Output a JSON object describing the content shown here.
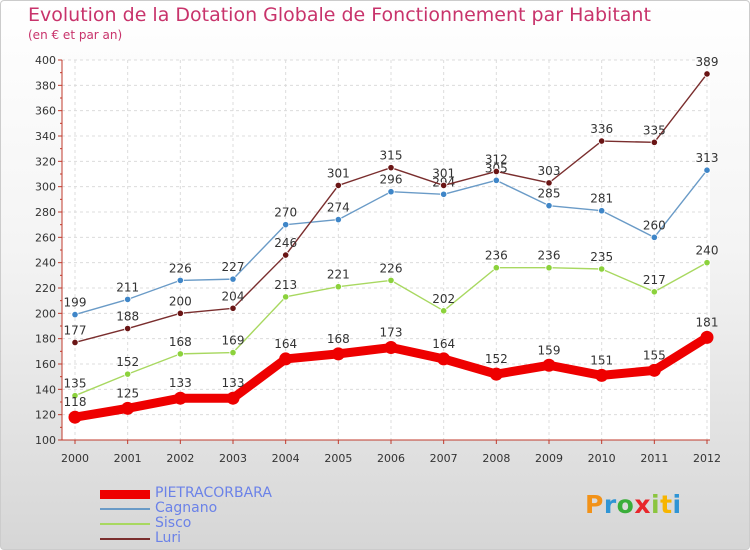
{
  "header": {
    "title": "Evolution de la Dotation Globale de Fonctionnement par Habitant",
    "subtitle": "(en € et par an)"
  },
  "logo": {
    "text": "Proxiti",
    "letter_colors": [
      "#f29218",
      "#2f95d5",
      "#3aae3a",
      "#e8272c",
      "#8bc53f",
      "#f7b500",
      "#2f95d5"
    ]
  },
  "chart_data": {
    "type": "line",
    "x": [
      "2000",
      "2001",
      "2002",
      "2003",
      "2004",
      "2005",
      "2006",
      "2007",
      "2008",
      "2009",
      "2010",
      "2011",
      "2012"
    ],
    "ylim": [
      100,
      400
    ],
    "yticks": [
      100,
      120,
      140,
      160,
      180,
      200,
      220,
      240,
      260,
      280,
      300,
      320,
      340,
      360,
      380,
      400
    ],
    "grid": true,
    "legend_position": "bottom-left",
    "series": [
      {
        "name": "PIETRACORBARA",
        "color": "#ee0000",
        "marker": "#ee0000",
        "emphasis": true,
        "values": [
          118,
          125,
          133,
          133,
          164,
          168,
          173,
          164,
          152,
          159,
          151,
          155,
          181
        ]
      },
      {
        "name": "Cagnano",
        "color": "#6a9bc7",
        "marker": "#3f86c8",
        "values": [
          199,
          211,
          226,
          227,
          270,
          274,
          296,
          294,
          305,
          285,
          281,
          260,
          313
        ]
      },
      {
        "name": "Sisco",
        "color": "#a8d860",
        "marker": "#8cd23c",
        "values": [
          135,
          152,
          168,
          169,
          213,
          221,
          226,
          202,
          236,
          236,
          235,
          217,
          240
        ]
      },
      {
        "name": "Luri",
        "color": "#7a2e2e",
        "marker": "#6a1515",
        "values": [
          177,
          188,
          200,
          204,
          246,
          301,
          315,
          301,
          312,
          303,
          336,
          335,
          389
        ]
      }
    ]
  }
}
